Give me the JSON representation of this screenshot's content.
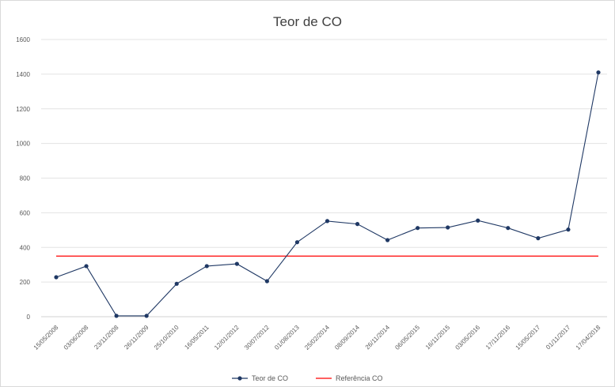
{
  "chart_data": {
    "type": "line",
    "title": "Teor de CO",
    "xlabel": "",
    "ylabel": "",
    "ylim": [
      0,
      1600
    ],
    "yticks": [
      0,
      200,
      400,
      600,
      800,
      1000,
      1200,
      1400,
      1600
    ],
    "grid": true,
    "legend_position": "bottom",
    "categories": [
      "15/05/2008",
      "03/06/2008",
      "23/11/2008",
      "26/11/2009",
      "25/10/2010",
      "16/05/2011",
      "12/01/2012",
      "30/07/2012",
      "01/08/2013",
      "25/02/2014",
      "08/09/2014",
      "26/11/2014",
      "06/05/2015",
      "16/11/2015",
      "03/05/2016",
      "17/11/2016",
      "15/05/2017",
      "01/11/2017",
      "17/04/2018"
    ],
    "series": [
      {
        "name": "Teor de CO",
        "color": "#1f3864",
        "marker": "circle",
        "values": [
          228,
          292,
          5,
          5,
          190,
          292,
          305,
          205,
          430,
          552,
          535,
          442,
          512,
          515,
          555,
          512,
          453,
          503,
          1410
        ]
      },
      {
        "name": "Referência CO",
        "color": "#ff0000",
        "marker": "none",
        "values": [
          350,
          350,
          350,
          350,
          350,
          350,
          350,
          350,
          350,
          350,
          350,
          350,
          350,
          350,
          350,
          350,
          350,
          350,
          350
        ]
      }
    ]
  }
}
